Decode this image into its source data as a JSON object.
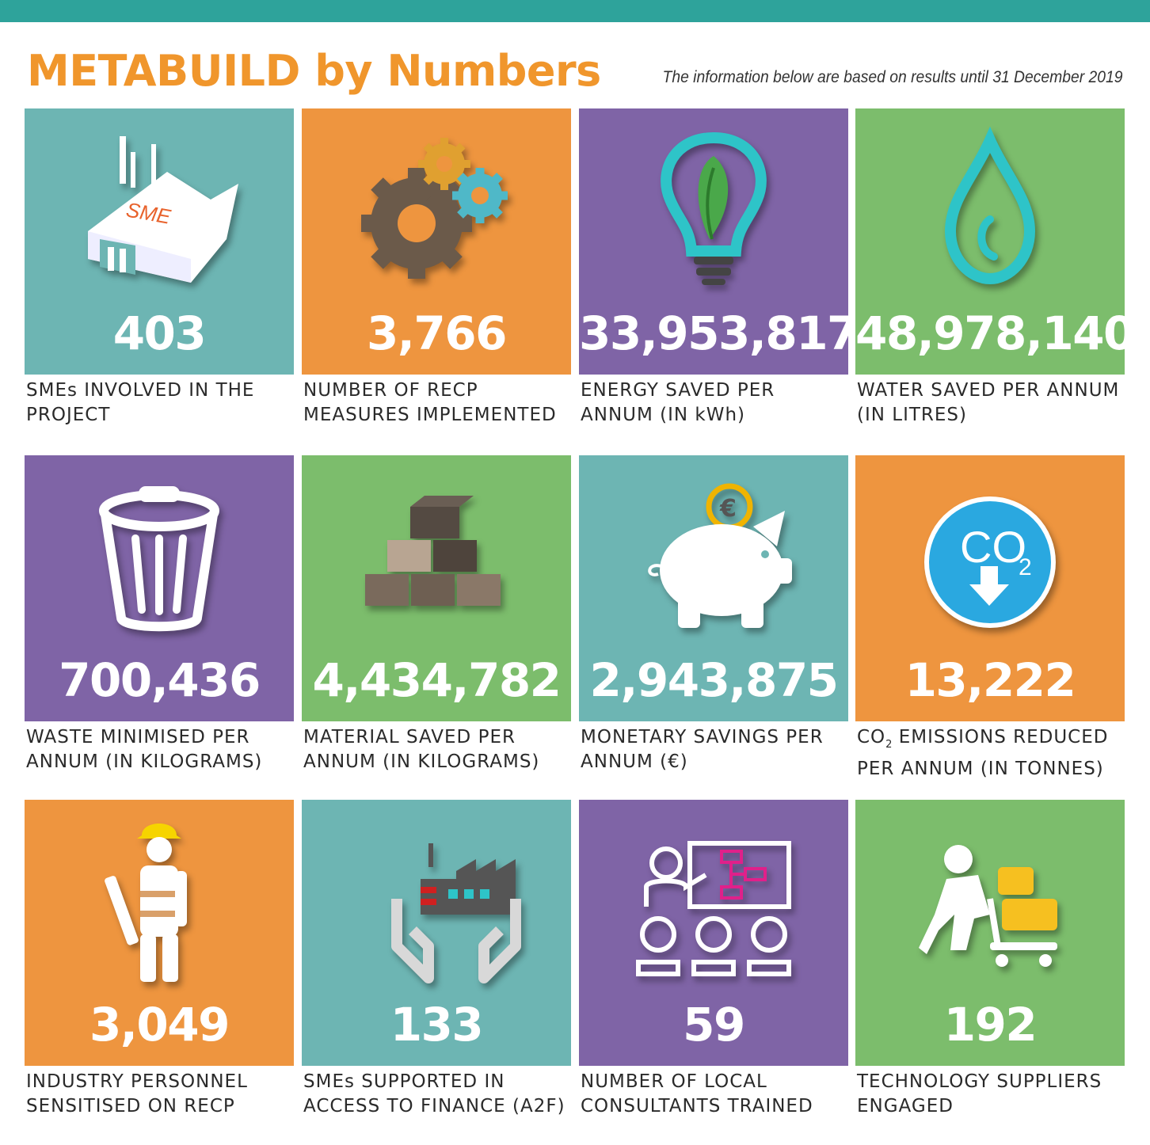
{
  "header": {
    "title": "METABUILD by Numbers",
    "note": "The information below are based on results until 31 December 2019"
  },
  "tiles": [
    {
      "value": "403",
      "caption": "SMEs INVOLVED IN THE PROJECT",
      "icon": "sme-factory-icon",
      "color": "#6db5b3",
      "icon_text": "SME"
    },
    {
      "value": "3,766",
      "caption": "NUMBER OF RECP MEASURES IMPLEMENTED",
      "icon": "gears-icon",
      "color": "#ee953f"
    },
    {
      "value": "33,953,817",
      "caption": "ENERGY SAVED PER ANNUM (IN kWh)",
      "icon": "lightbulb-leaf-icon",
      "color": "#7f64a6"
    },
    {
      "value": "48,978,140",
      "caption": "WATER SAVED PER ANNUM (IN LITRES)",
      "icon": "water-drop-icon",
      "color": "#7cbd6c"
    },
    {
      "value": "700,436",
      "caption": "WASTE MINIMISED PER ANNUM (IN KILOGRAMS)",
      "icon": "trash-bin-icon",
      "color": "#7f64a6"
    },
    {
      "value": "4,434,782",
      "caption": "MATERIAL SAVED PER ANNUM (IN KILOGRAMS)",
      "icon": "bricks-icon",
      "color": "#7cbd6c"
    },
    {
      "value": "2,943,875",
      "caption": "MONETARY SAVINGS PER ANNUM (€)",
      "icon": "piggy-bank-icon",
      "color": "#6db5b3",
      "icon_text": "€"
    },
    {
      "value": "13,222",
      "caption_prefix": "CO",
      "caption_sub": "2",
      "caption": " EMISSIONS REDUCED PER ANNUM (IN TONNES)",
      "icon": "co2-reduction-icon",
      "color": "#ee953f",
      "icon_text": "CO",
      "icon_sub": "2"
    },
    {
      "value": "3,049",
      "caption": "INDUSTRY PERSONNEL SENSITISED ON RECP",
      "icon": "worker-icon",
      "color": "#ee953f"
    },
    {
      "value": "133",
      "caption": "SMEs SUPPORTED IN ACCESS TO FINANCE (A2F)",
      "icon": "hands-factory-icon",
      "color": "#6db5b3"
    },
    {
      "value": "59",
      "caption": "NUMBER OF LOCAL CONSULTANTS TRAINED",
      "icon": "training-icon",
      "color": "#7f64a6"
    },
    {
      "value": "192",
      "caption": "TECHNOLOGY SUPPLIERS ENGAGED",
      "icon": "supplier-cart-icon",
      "color": "#7cbd6c"
    }
  ]
}
